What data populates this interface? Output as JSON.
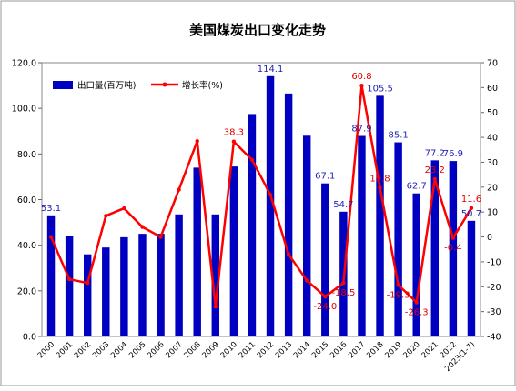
{
  "chart_data": {
    "type": "bar+line",
    "title": "美国煤炭出口变化走势",
    "categories": [
      "2000",
      "2001",
      "2002",
      "2003",
      "2004",
      "2005",
      "2006",
      "2007",
      "2008",
      "2009",
      "2010",
      "2011",
      "2012",
      "2013",
      "2014",
      "2015",
      "2016",
      "2017",
      "2018",
      "2019",
      "2020",
      "2021",
      "2022",
      "2023(1-7)"
    ],
    "series": [
      {
        "name": "出口量(百万吨)",
        "type": "bar",
        "axis": "left",
        "color": "#0000c0",
        "values": [
          53.1,
          44.0,
          36.0,
          39.0,
          43.5,
          45.0,
          45.0,
          53.5,
          74.0,
          53.5,
          74.5,
          97.5,
          114.1,
          106.5,
          88.0,
          67.1,
          54.7,
          87.9,
          105.5,
          85.1,
          62.7,
          77.2,
          76.9,
          50.7
        ],
        "data_labels": {
          "0": "53.1",
          "12": "114.1",
          "15": "67.1",
          "16": "54.7",
          "17": "87.9",
          "18": "105.5",
          "19": "85.1",
          "20": "62.7",
          "21": "77.2",
          "22": "76.9",
          "23": "50.7"
        }
      },
      {
        "name": "增长率(%)",
        "type": "line",
        "axis": "right",
        "color": "#ff0000",
        "values": [
          0.0,
          -17.0,
          -18.5,
          8.5,
          11.5,
          4.0,
          0.0,
          19.0,
          38.5,
          -28.0,
          38.3,
          31.0,
          17.0,
          -7.0,
          -17.5,
          -24.0,
          -18.5,
          60.8,
          19.8,
          -19.3,
          -26.3,
          23.2,
          -0.4,
          11.6
        ],
        "data_labels": {
          "10": "38.3",
          "15": "-24.0",
          "16": "-18.5",
          "17": "60.8",
          "18": "19.8",
          "19": "-19.3",
          "20": "-26.3",
          "21": "23.2",
          "22": "-0.4",
          "23": "11.6"
        }
      }
    ],
    "y_left": {
      "min": 0,
      "max": 120,
      "ticks": [
        "0.0",
        "20.0",
        "40.0",
        "60.0",
        "80.0",
        "100.0",
        "120.0"
      ]
    },
    "y_right": {
      "min": -40,
      "max": 70,
      "ticks": [
        "-40",
        "-30",
        "-20",
        "-10",
        "0",
        "10",
        "20",
        "30",
        "40",
        "50",
        "60",
        "70"
      ]
    },
    "legend": {
      "position": "top-left",
      "bar_label": "出口量(百万吨)",
      "line_label": "增长率(%)"
    },
    "grid": false
  }
}
